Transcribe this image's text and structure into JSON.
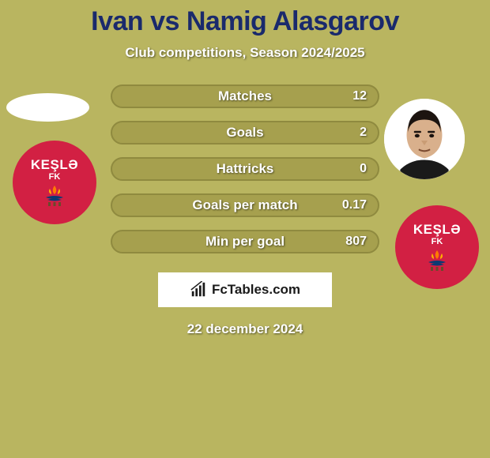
{
  "background_color": "#b9b560",
  "title": {
    "text": "Ivan vs Namig Alasgarov",
    "color": "#1a2a6c",
    "fontsize": 34
  },
  "subtitle": "Club competitions, Season 2024/2025",
  "stats": {
    "row_bg": "#a6a04e",
    "row_border": "#8f8a3f",
    "label_color": "#ffffff",
    "rows": [
      {
        "label": "Matches",
        "right": "12"
      },
      {
        "label": "Goals",
        "right": "2"
      },
      {
        "label": "Hattricks",
        "right": "0"
      },
      {
        "label": "Goals per match",
        "right": "0.17"
      },
      {
        "label": "Min per goal",
        "right": "807"
      }
    ]
  },
  "club": {
    "name_upper": "KEŞLƏ",
    "sub": "FK",
    "badge_bg": "#d22043",
    "badge_text": "#ffffff"
  },
  "brand": "FcTables.com",
  "date": "22 december 2024"
}
